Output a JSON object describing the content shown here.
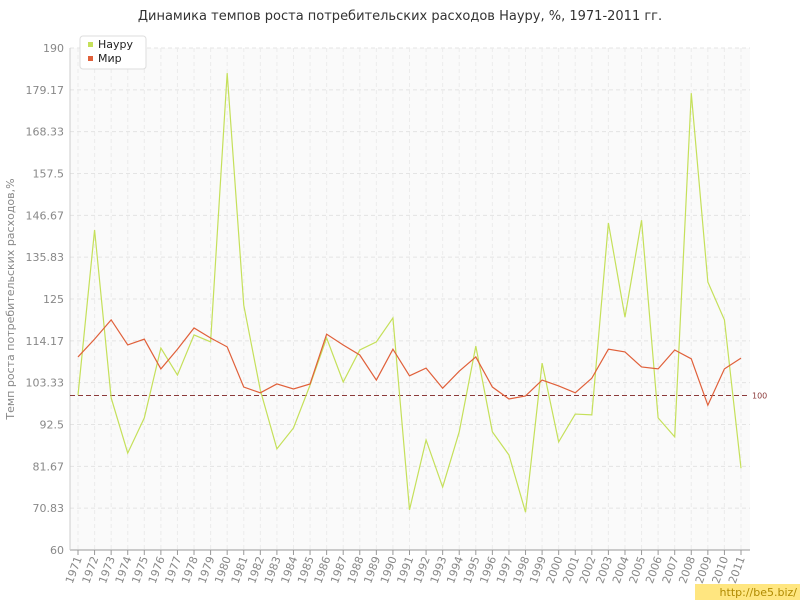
{
  "chart_data": {
    "type": "line",
    "title": "Динамика темпов роста потребительских расходов Науру, %, 1971-2011 гг.",
    "y_label": "Темп роста потребительских расходов,%",
    "categories": [
      "1971",
      "1972",
      "1973",
      "1974",
      "1975",
      "1976",
      "1977",
      "1978",
      "1979",
      "1980",
      "1981",
      "1982",
      "1983",
      "1984",
      "1985",
      "1986",
      "1987",
      "1988",
      "1989",
      "1990",
      "1991",
      "1992",
      "1993",
      "1994",
      "1995",
      "1996",
      "1997",
      "1998",
      "1999",
      "2000",
      "2001",
      "2002",
      "2003",
      "2004",
      "2005",
      "2006",
      "2007",
      "2008",
      "2009",
      "2010",
      "2011"
    ],
    "series": [
      {
        "name": "Науру",
        "color": "#c5e05a",
        "values": [
          100.1,
          142.9,
          99.4,
          85.1,
          94.2,
          112.3,
          105.3,
          115.7,
          113.9,
          183.5,
          123.4,
          101.4,
          86.2,
          91.6,
          102.7,
          114.9,
          103.5,
          111.8,
          113.9,
          120.1,
          70.4,
          88.5,
          76.3,
          90.6,
          112.8,
          90.6,
          84.6,
          69.8,
          108.4,
          88,
          95.2,
          95,
          144.7,
          120.3,
          145.4,
          94.2,
          89.3,
          178.3,
          129.4,
          119.6,
          81.2
        ]
      },
      {
        "name": "Мир",
        "color": "#e0603a",
        "values": [
          110,
          114.6,
          119.6,
          113.1,
          114.6,
          106.9,
          112,
          117.5,
          114.9,
          112.6,
          102.2,
          100.7,
          103,
          101.7,
          103,
          115.9,
          113.1,
          110.5,
          104,
          112,
          105.1,
          107.1,
          101.9,
          106.3,
          110,
          102.2,
          99.1,
          99.9,
          104,
          102.5,
          100.7,
          104.5,
          112,
          111.3,
          107.4,
          106.9,
          111.8,
          109.5,
          97.5,
          106.9,
          109.7
        ]
      }
    ],
    "ylim": [
      60,
      190
    ],
    "yticks": [
      60,
      70.83,
      81.67,
      92.5,
      103.33,
      114.17,
      125,
      135.83,
      146.67,
      157.5,
      168.33,
      179.17,
      190
    ],
    "reference_line": 100,
    "grid": true,
    "legend": "top-left",
    "watermark": "http://be5.biz/"
  }
}
